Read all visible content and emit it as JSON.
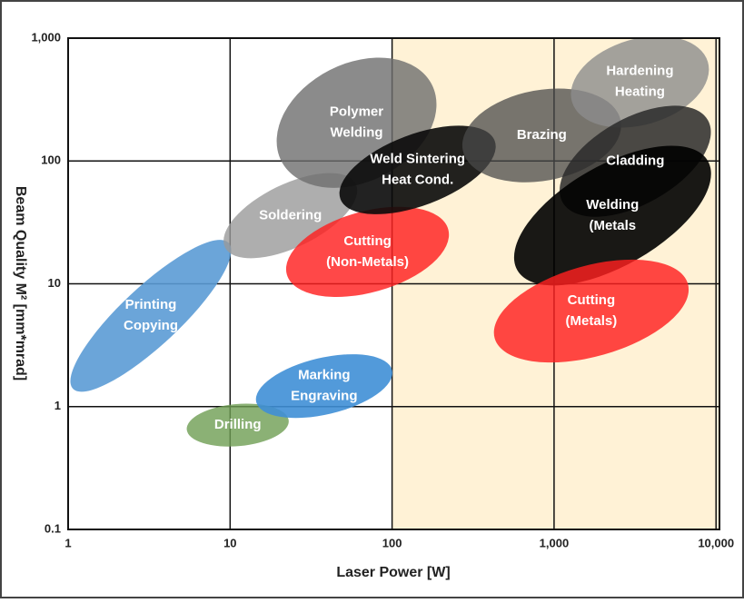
{
  "chart_data": {
    "type": "region",
    "x_label": "Laser Power [W]",
    "y_label": "Beam Quality M² [mm*mrad]",
    "log_x": true,
    "log_y": true,
    "xlim": [
      1,
      10500
    ],
    "ylim": [
      0.1,
      1000
    ],
    "xticks": [
      1,
      10,
      100,
      {
        "value": 1000,
        "label": "1,000"
      },
      {
        "value": 10000,
        "label": "10,000"
      }
    ],
    "yticks": [
      0.1,
      1,
      10,
      100,
      {
        "value": 1000,
        "label": "1,000"
      }
    ],
    "grid": true,
    "highlight_from": 100,
    "highlight_color": "#fff2d6",
    "regions": [
      {
        "label": [
          "Printing",
          "Copying"
        ],
        "x": [
          1.07,
          9.8
        ],
        "y": [
          1.4,
          21.5
        ],
        "thickness": 0.36,
        "color": "#5b9bd5",
        "opacity": 0.9
      },
      {
        "label": [
          "Drilling"
        ],
        "x": [
          5.4,
          23
        ],
        "y": [
          0.65,
          0.77
        ],
        "thickness": 0.26,
        "color": "#6e9d52",
        "opacity": 0.8
      },
      {
        "label": [
          "Marking",
          "Engraving"
        ],
        "x": [
          14.5,
          100
        ],
        "y": [
          1.09,
          1.98
        ],
        "thickness": 0.35,
        "color": "#3f8fd6",
        "opacity": 0.9
      },
      {
        "label": [
          "Soldering"
        ],
        "x": [
          9.3,
          59.7
        ],
        "y": [
          19.8,
          65
        ],
        "thickness": 0.39,
        "color": "#9a9a9a",
        "opacity": 0.8
      },
      {
        "label": [
          "Polymer",
          "Welding"
        ],
        "x": [
          20.7,
          176
        ],
        "y": [
          100,
          419
        ],
        "thickness": 0.73,
        "color": "#6e6e6e",
        "opacity": 0.8
      },
      {
        "label": [
          "Cutting",
          "(Non-Metals)"
        ],
        "x": [
          22.4,
          222
        ],
        "y": [
          11.9,
          27.8
        ],
        "thickness": 0.5,
        "color": "#ff2020",
        "opacity": 0.82
      },
      {
        "label": [
          "Weld Sintering",
          "Heat Cond."
        ],
        "x": [
          48,
          430
        ],
        "y": [
          48.9,
          146
        ],
        "thickness": 0.44,
        "color": "#0a0a0a",
        "opacity": 0.9
      },
      {
        "label": [
          "Brazing"
        ],
        "x": [
          273,
          2580
        ],
        "y": [
          123,
          212
        ],
        "thickness": 0.56,
        "color": "#4a4a4a",
        "opacity": 0.75
      },
      {
        "label": [
          "Hardening",
          "Heating"
        ],
        "x": [
          1290,
          8900
        ],
        "y": [
          303,
          641
        ],
        "thickness": 0.53,
        "color": "#8c8c8c",
        "opacity": 0.8
      },
      {
        "label": [
          "Cladding"
        ],
        "x": [
          1130,
          8900
        ],
        "y": [
          46,
          215
        ],
        "thickness": 0.53,
        "color": "#2a2a2a",
        "opacity": 0.85
      },
      {
        "label": [
          "Welding",
          "(Metals"
        ],
        "x": [
          593,
          8900
        ],
        "y": [
          12.9,
          100
        ],
        "thickness": 0.62,
        "color": "#000000",
        "opacity": 0.9
      },
      {
        "label": [
          "Cutting",
          "(Metals)"
        ],
        "x": [
          430,
          6700
        ],
        "y": [
          3.6,
          10
        ],
        "thickness": 0.56,
        "color": "#ff2020",
        "opacity": 0.82
      }
    ]
  }
}
